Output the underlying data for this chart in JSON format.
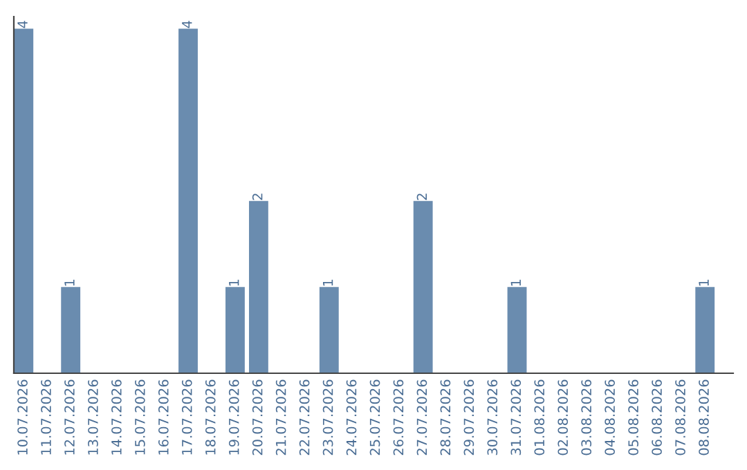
{
  "chart_data": {
    "type": "bar",
    "categories": [
      "10.07.2026",
      "11.07.2026",
      "12.07.2026",
      "13.07.2026",
      "14.07.2026",
      "15.07.2026",
      "16.07.2026",
      "17.07.2026",
      "18.07.2026",
      "19.07.2026",
      "20.07.2026",
      "21.07.2026",
      "22.07.2026",
      "23.07.2026",
      "24.07.2026",
      "25.07.2026",
      "26.07.2026",
      "27.07.2026",
      "28.07.2026",
      "29.07.2026",
      "30.07.2026",
      "31.07.2026",
      "01.08.2026",
      "02.08.2026",
      "03.08.2026",
      "04.08.2026",
      "05.08.2026",
      "06.08.2026",
      "07.08.2026",
      "08.08.2026"
    ],
    "values": [
      4,
      0,
      1,
      0,
      0,
      0,
      0,
      4,
      0,
      1,
      2,
      0,
      0,
      1,
      0,
      0,
      0,
      2,
      0,
      0,
      0,
      1,
      0,
      0,
      0,
      0,
      0,
      0,
      0,
      1
    ],
    "value_labels": [
      "4",
      null,
      "1",
      null,
      null,
      null,
      null,
      "4",
      null,
      "1",
      "2",
      null,
      null,
      "1",
      null,
      null,
      null,
      "2",
      null,
      null,
      null,
      "1",
      null,
      null,
      null,
      null,
      null,
      null,
      null,
      "1"
    ],
    "color": "#6a8caf",
    "grid": false,
    "legend": false,
    "tick_labels": "x"
  }
}
